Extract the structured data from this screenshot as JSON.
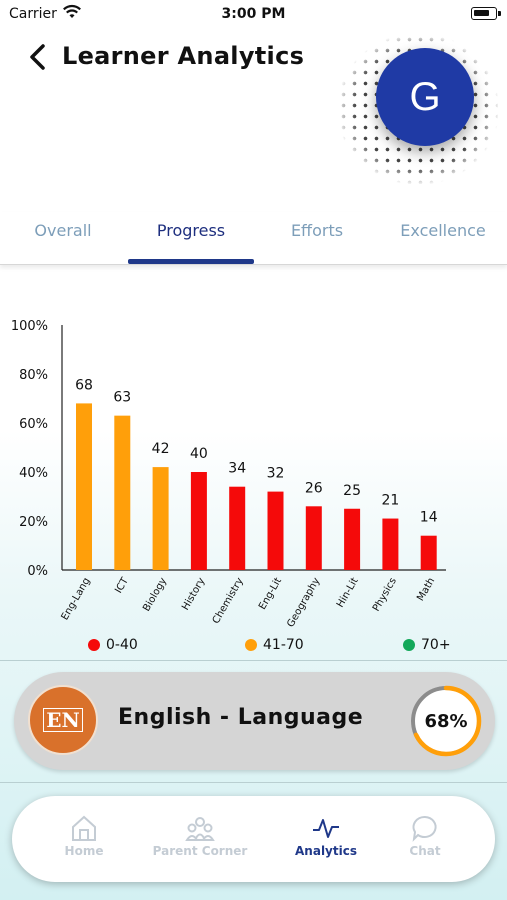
{
  "status_bar": {
    "carrier": "Carrier",
    "time": "3:00 PM"
  },
  "header": {
    "title": "Learner Analytics",
    "avatar_letter": "G",
    "avatar_color": "#1f3aa5"
  },
  "tabs": [
    {
      "label": "Overall",
      "active": false
    },
    {
      "label": "Progress",
      "active": true
    },
    {
      "label": "Efforts",
      "active": false
    },
    {
      "label": "Excellence",
      "active": false
    }
  ],
  "chart_data": {
    "type": "bar",
    "categories": [
      "Eng-Lang",
      "ICT",
      "Biology",
      "History",
      "Chemistry",
      "Eng-Lit",
      "Geography",
      "Hin-Lit",
      "Physics",
      "Math"
    ],
    "values": [
      68,
      63,
      42,
      40,
      34,
      32,
      26,
      25,
      21,
      14
    ],
    "bar_colors": [
      "#ff9f0a",
      "#ff9f0a",
      "#ff9f0a",
      "#f50a0a",
      "#f50a0a",
      "#f50a0a",
      "#f50a0a",
      "#f50a0a",
      "#f50a0a",
      "#f50a0a"
    ],
    "ytick_labels": [
      "0%",
      "20%",
      "40%",
      "60%",
      "80%",
      "100%"
    ],
    "ylim": [
      0,
      100
    ],
    "title": "",
    "xlabel": "",
    "ylabel": ""
  },
  "legend": [
    {
      "label": "0-40",
      "color": "#f50a0a"
    },
    {
      "label": "41-70",
      "color": "#ff9f0a"
    },
    {
      "label": "70+",
      "color": "#13a85a"
    }
  ],
  "subject_card": {
    "icon_text": "EN",
    "name": "English - Language",
    "percent_label": "68%",
    "percent": 68,
    "ring_color": "#ff9f0a",
    "icon_color": "#d9712b"
  },
  "bottom_nav": [
    {
      "label": "Home",
      "icon": "home-icon",
      "active": false
    },
    {
      "label": "Parent Corner",
      "icon": "people-icon",
      "active": false
    },
    {
      "label": "Analytics",
      "icon": "analytics-icon",
      "active": true
    },
    {
      "label": "Chat",
      "icon": "chat-icon",
      "active": false
    }
  ]
}
